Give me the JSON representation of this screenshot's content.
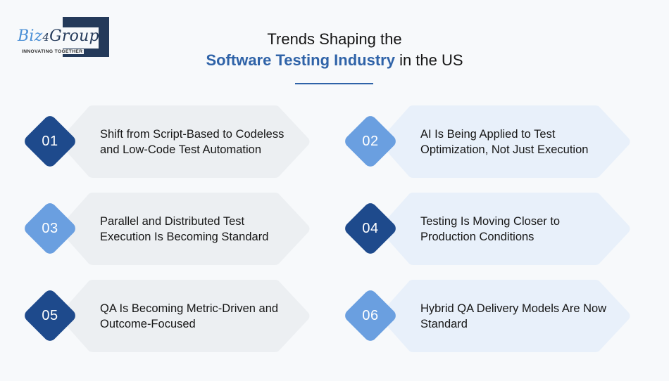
{
  "logo": {
    "brand_part1": "Biz",
    "brand_part2": "4",
    "brand_part3": "Group",
    "tagline": "INNOVATING TOGETHER"
  },
  "header": {
    "title_line1": "Trends Shaping the",
    "title_accent": "Software Testing Industry",
    "title_suffix": " in the US"
  },
  "colors": {
    "background": "#f7f9fb",
    "accent_blue": "#2f63a8",
    "badge_dark": "#1e4a8c",
    "badge_light": "#6a9fe0",
    "card_gray": "#eceff2",
    "card_blue": "#e8f0fa",
    "logo_navy": "#243a5a"
  },
  "trends": [
    {
      "number": "01",
      "text": "Shift from Script-Based to Codeless and Low-Code Test Automation",
      "badge": "dark",
      "card": "gray"
    },
    {
      "number": "02",
      "text": "AI Is Being Applied to Test Optimization, Not Just Execution",
      "badge": "light",
      "card": "blue"
    },
    {
      "number": "03",
      "text": "Parallel and Distributed Test Execution Is Becoming Standard",
      "badge": "light",
      "card": "gray"
    },
    {
      "number": "04",
      "text": "Testing Is Moving Closer to Production Conditions",
      "badge": "dark",
      "card": "blue"
    },
    {
      "number": "05",
      "text": "QA Is Becoming Metric-Driven and Outcome-Focused",
      "badge": "dark",
      "card": "gray"
    },
    {
      "number": "06",
      "text": "Hybrid QA Delivery Models Are Now Standard",
      "badge": "light",
      "card": "blue"
    }
  ]
}
